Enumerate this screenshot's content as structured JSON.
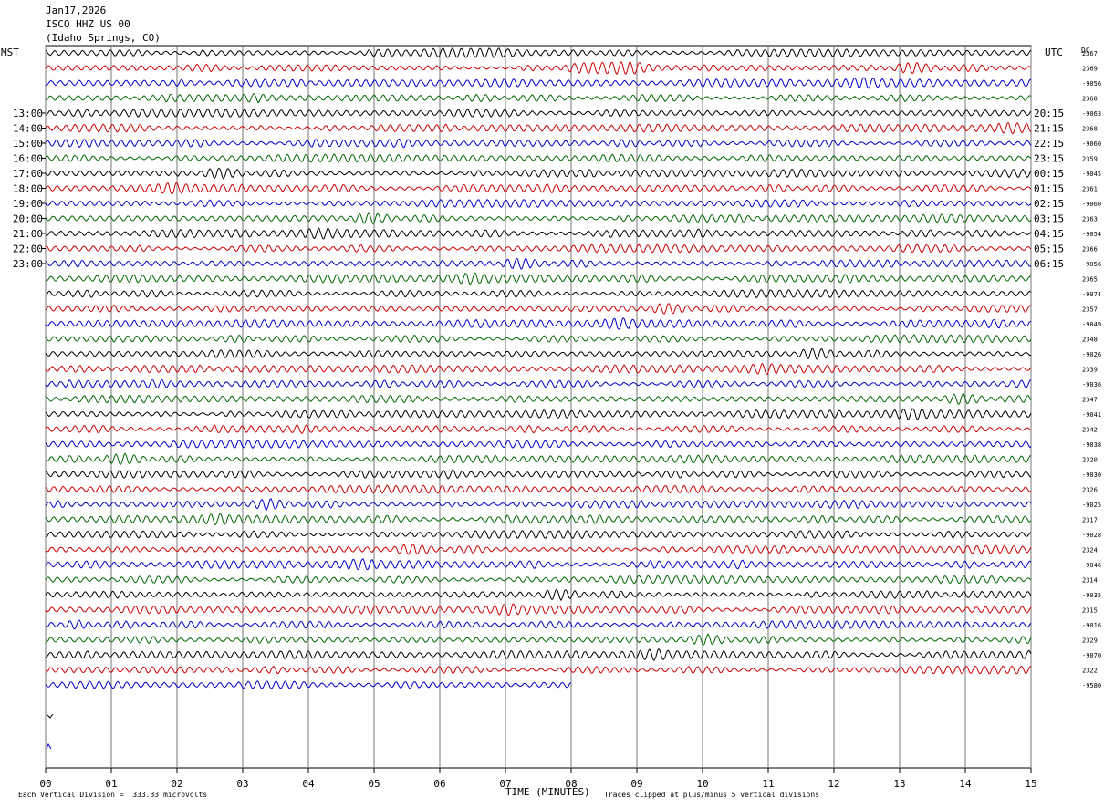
{
  "header": {
    "date": "Jan17,2026",
    "station": "ISCO HHZ US 00",
    "location": "(Idaho Springs, CO)"
  },
  "chart_data": {
    "type": "line",
    "title": "Jan17,2026",
    "subtitle": "ISCO HHZ US 00 (Idaho Springs, CO)",
    "xlabel": "TIME (MINUTES)",
    "xlim": [
      0,
      15
    ],
    "x_ticks": [
      "00",
      "01",
      "02",
      "03",
      "04",
      "05",
      "06",
      "07",
      "08",
      "09",
      "10",
      "11",
      "12",
      "13",
      "14",
      "15"
    ],
    "left_axis_label": "MST",
    "right_axis_label": "UTC",
    "dc_label": "DC",
    "left_hour_labels": [
      "13:00",
      "14:00",
      "15:00",
      "16:00",
      "17:00",
      "18:00",
      "19:00",
      "20:00",
      "21:00",
      "22:00",
      "23:00"
    ],
    "right_hour_labels": [
      "20:15",
      "21:15",
      "22:15",
      "23:15",
      "00:15",
      "01:15",
      "02:15",
      "03:15",
      "04:15",
      "05:15",
      "06:15"
    ],
    "trace_colors": [
      "#000000",
      "#cc0000",
      "#0000cc",
      "#006600"
    ],
    "dc_offsets": [
      "2367",
      "2369",
      "-9056",
      "2360",
      "-9063",
      "2368",
      "-9060",
      "2359",
      "-9045",
      "2361",
      "-9060",
      "2363",
      "-9054",
      "2366",
      "-9056",
      "2365",
      "-9074",
      "2357",
      "-9049",
      "2348",
      "-9026",
      "2339",
      "-9036",
      "2347",
      "-9041",
      "2342",
      "-9038",
      "2320",
      "-9030",
      "2326",
      "-9025",
      "2317",
      "-9028",
      "2324",
      "-9046",
      "2314",
      "-9035",
      "2315",
      "-9016",
      "2329",
      "-9070",
      "2322",
      "-9580"
    ],
    "full_traces": 42,
    "partial_trace_end_minute": 8.0,
    "vertical_division_note": "Each Vertical Division =  333.33 microvolts",
    "clip_note": "Traces clipped at plus/minus 5 vertical divisions"
  }
}
